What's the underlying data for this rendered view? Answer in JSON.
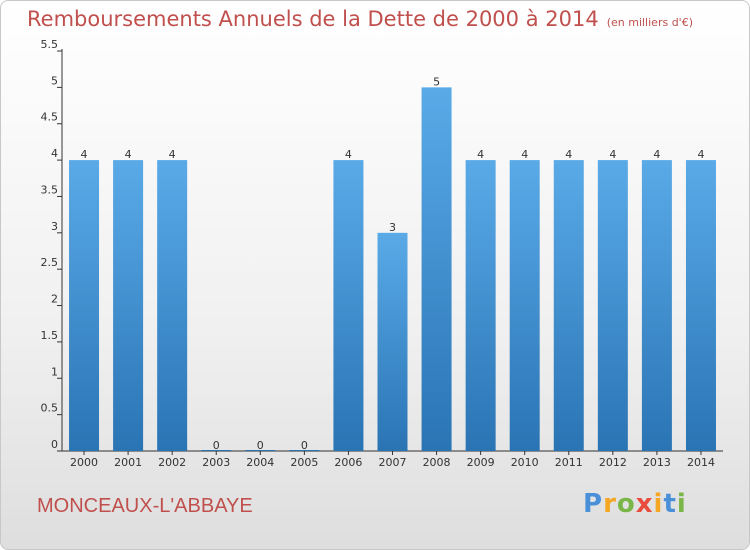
{
  "header": {
    "title": "Remboursements Annuels de la Dette de 2000 à 2014",
    "subtitle": "(en milliers d'€)"
  },
  "footer": {
    "commune": "MONCEAUX-L'ABBAYE",
    "logo_text": "Proxiti"
  },
  "chart_data": {
    "type": "bar",
    "title": "Remboursements Annuels de la Dette de 2000 à 2014",
    "subtitle": "(en milliers d'€)",
    "categories": [
      "2000",
      "2001",
      "2002",
      "2003",
      "2004",
      "2005",
      "2006",
      "2007",
      "2008",
      "2009",
      "2010",
      "2011",
      "2012",
      "2013",
      "2014"
    ],
    "values": [
      4,
      4,
      4,
      0,
      0,
      0,
      4,
      3,
      5,
      4,
      4,
      4,
      4,
      4,
      4
    ],
    "data_labels": [
      "4",
      "4",
      "4",
      "0",
      "0",
      "0",
      "4",
      "3",
      "5",
      "4",
      "4",
      "4",
      "4",
      "4",
      "4"
    ],
    "y_ticks": [
      0,
      0.5,
      1,
      1.5,
      2,
      2.5,
      3,
      3.5,
      4,
      4.5,
      5,
      5.5
    ],
    "y_tick_labels": [
      "0",
      "0.5",
      "1",
      "1.5",
      "2",
      "2.5",
      "3",
      "3.5",
      "4",
      "4.5",
      "5",
      "5.5"
    ],
    "ylim": [
      0,
      5.5
    ],
    "grid": false,
    "colors": {
      "bar_top": "#5aaae8",
      "bar_bottom": "#2a74b4",
      "text": "#c0504d",
      "axis": "#333333"
    }
  }
}
